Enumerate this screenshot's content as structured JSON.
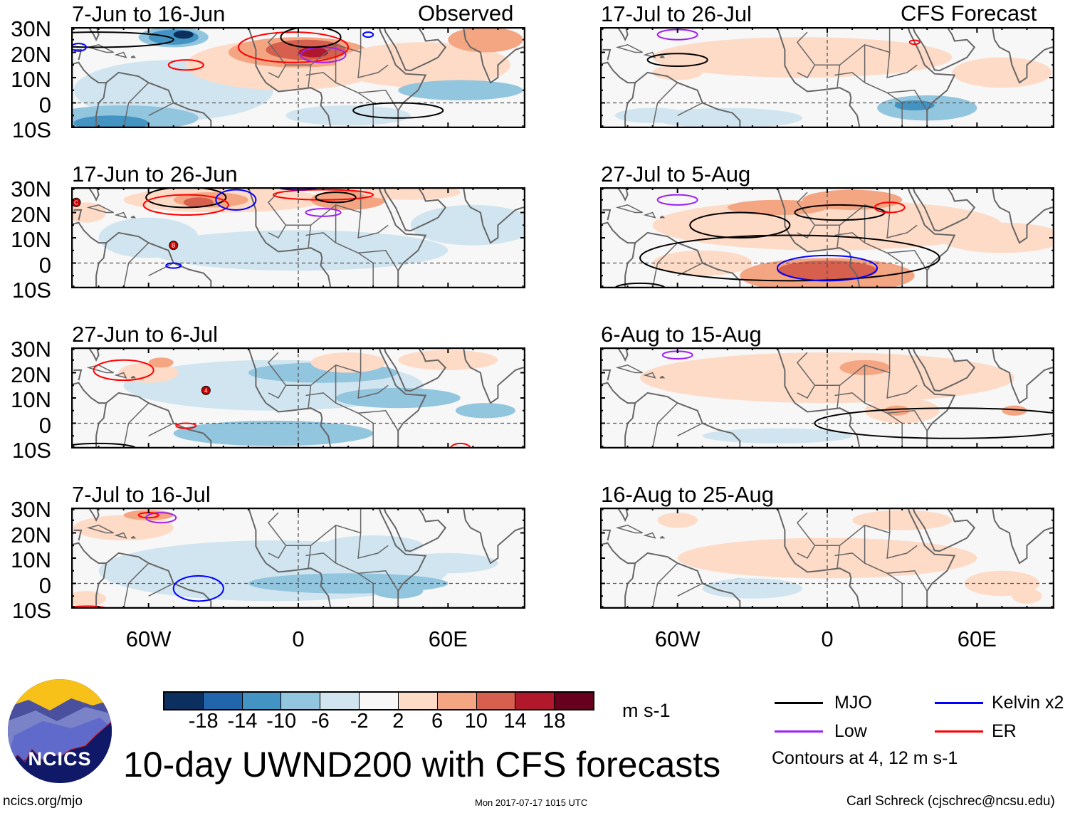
{
  "headers": {
    "observed": "Observed",
    "forecast": "CFS Forecast"
  },
  "y_axis_labels": [
    "30N",
    "20N",
    "10N",
    "0",
    "10S"
  ],
  "x_axis_labels": [
    "60W",
    "0",
    "60E"
  ],
  "panels": [
    {
      "title": "7-Jun to 16-Jun",
      "column": "observed"
    },
    {
      "title": "17-Jun to 26-Jun",
      "column": "observed"
    },
    {
      "title": "27-Jun to 6-Jul",
      "column": "observed"
    },
    {
      "title": "7-Jul to 16-Jul",
      "column": "observed"
    },
    {
      "title": "17-Jul to 26-Jul",
      "column": "forecast"
    },
    {
      "title": "27-Jul to 5-Aug",
      "column": "forecast"
    },
    {
      "title": "6-Aug to 15-Aug",
      "column": "forecast"
    },
    {
      "title": "16-Aug to 25-Aug",
      "column": "forecast"
    }
  ],
  "colorbar": {
    "colors": [
      "#0b2f5e",
      "#2166ac",
      "#4393c3",
      "#92c5de",
      "#d1e5f0",
      "#f7f7f7",
      "#fddbc7",
      "#f4a582",
      "#d6604d",
      "#b2182b",
      "#67001f"
    ],
    "ticks": [
      "-18",
      "-14",
      "-10",
      "-6",
      "-2",
      "2",
      "6",
      "10",
      "14",
      "18"
    ],
    "units": "m s-1"
  },
  "legend": {
    "items": [
      {
        "label": "MJO",
        "color": "#000000"
      },
      {
        "label": "Kelvin x2",
        "color": "#0000ff"
      },
      {
        "label": "Low",
        "color": "#a020f0"
      },
      {
        "label": "ER",
        "color": "#ff0000"
      }
    ],
    "note": "Contours at 4, 12 m s-1"
  },
  "title": "10-day UWND200 with CFS forecasts",
  "logo": {
    "text": "NCICS"
  },
  "footer": {
    "url": "ncics.org/mjo",
    "timestamp": "Mon 2017-07-17 1015 UTC",
    "author": "Carl Schreck (cjschrec@ncsu.edu)"
  },
  "storm_labels": [
    "C",
    "B",
    "4"
  ]
}
